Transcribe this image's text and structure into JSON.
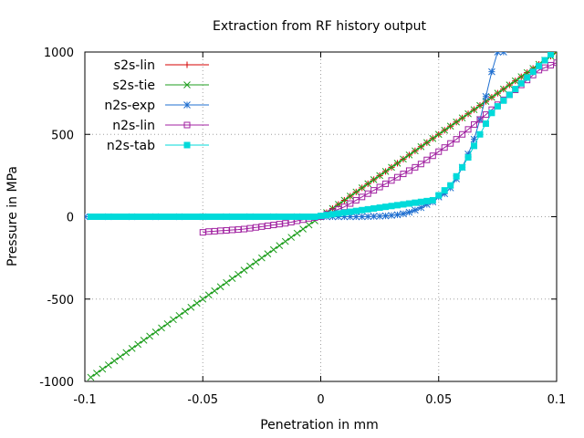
{
  "chart_data": {
    "type": "line",
    "title": "Extraction from RF history output",
    "xlabel": "Penetration in mm",
    "ylabel": "Pressure in MPa",
    "xlim": [
      -0.1,
      0.1
    ],
    "ylim": [
      -1000,
      1000
    ],
    "xticks": [
      -0.1,
      -0.05,
      0,
      0.05,
      0.1
    ],
    "xtick_labels": [
      "-0.1",
      "-0.05",
      "0",
      "0.05",
      "0.1"
    ],
    "yticks": [
      -1000,
      -500,
      0,
      500,
      1000
    ],
    "ytick_labels": [
      "-1000",
      "-500",
      "0",
      "500",
      "1000"
    ],
    "grid": true,
    "legend_position": "top-left",
    "series": [
      {
        "name": "s2s-lin",
        "color": "#d40000",
        "marker": "plus",
        "x": [
          0,
          0.0025,
          0.005,
          0.0075,
          0.01,
          0.0125,
          0.015,
          0.0175,
          0.02,
          0.0225,
          0.025,
          0.0275,
          0.03,
          0.0325,
          0.035,
          0.0375,
          0.04,
          0.0425,
          0.045,
          0.0475,
          0.05,
          0.0525,
          0.055,
          0.0575,
          0.06,
          0.0625,
          0.065,
          0.0675,
          0.07,
          0.0725,
          0.075,
          0.0775,
          0.08,
          0.0825,
          0.085,
          0.0875,
          0.09,
          0.0925,
          0.095,
          0.0975,
          0.1
        ],
        "y": [
          0,
          25,
          50,
          75,
          100,
          125,
          150,
          175,
          200,
          225,
          250,
          275,
          300,
          325,
          350,
          375,
          400,
          425,
          450,
          475,
          500,
          525,
          550,
          575,
          600,
          625,
          650,
          675,
          700,
          725,
          750,
          775,
          800,
          825,
          850,
          875,
          900,
          925,
          950,
          975,
          1000
        ]
      },
      {
        "name": "s2s-tie",
        "color": "#1e9e1e",
        "marker": "cross",
        "x": [
          -0.0975,
          -0.095,
          -0.0925,
          -0.09,
          -0.0875,
          -0.085,
          -0.0825,
          -0.08,
          -0.0775,
          -0.075,
          -0.0725,
          -0.07,
          -0.0675,
          -0.065,
          -0.0625,
          -0.06,
          -0.0575,
          -0.055,
          -0.0525,
          -0.05,
          -0.0475,
          -0.045,
          -0.0425,
          -0.04,
          -0.0375,
          -0.035,
          -0.0325,
          -0.03,
          -0.0275,
          -0.025,
          -0.0225,
          -0.02,
          -0.0175,
          -0.015,
          -0.0125,
          -0.01,
          -0.0075,
          -0.005,
          -0.0025,
          0,
          0.0025,
          0.005,
          0.0075,
          0.01,
          0.0125,
          0.015,
          0.0175,
          0.02,
          0.0225,
          0.025,
          0.0275,
          0.03,
          0.0325,
          0.035,
          0.0375,
          0.04,
          0.0425,
          0.045,
          0.0475,
          0.05,
          0.0525,
          0.055,
          0.0575,
          0.06,
          0.0625,
          0.065,
          0.0675,
          0.07,
          0.0725,
          0.075,
          0.0775,
          0.08,
          0.0825,
          0.085,
          0.0875,
          0.09,
          0.0925,
          0.095,
          0.0975,
          0.1
        ],
        "y": [
          -975,
          -950,
          -925,
          -900,
          -875,
          -850,
          -825,
          -800,
          -775,
          -750,
          -725,
          -700,
          -675,
          -650,
          -625,
          -600,
          -575,
          -550,
          -525,
          -500,
          -475,
          -450,
          -425,
          -400,
          -375,
          -350,
          -325,
          -300,
          -275,
          -250,
          -225,
          -200,
          -175,
          -150,
          -125,
          -100,
          -75,
          -50,
          -25,
          0,
          25,
          50,
          75,
          100,
          125,
          150,
          175,
          200,
          225,
          250,
          275,
          300,
          325,
          350,
          375,
          400,
          425,
          450,
          475,
          500,
          525,
          550,
          575,
          600,
          625,
          650,
          675,
          700,
          725,
          750,
          775,
          800,
          825,
          850,
          875,
          900,
          925,
          950,
          975,
          1000
        ]
      },
      {
        "name": "n2s-exp",
        "color": "#1f6fd0",
        "marker": "star",
        "x": [
          -0.1,
          -0.09,
          -0.08,
          -0.07,
          -0.06,
          -0.05,
          -0.04,
          -0.03,
          -0.02,
          -0.01,
          0,
          0.0025,
          0.005,
          0.0075,
          0.01,
          0.0125,
          0.015,
          0.0175,
          0.02,
          0.0225,
          0.025,
          0.0275,
          0.03,
          0.0325,
          0.035,
          0.0375,
          0.04,
          0.0425,
          0.045,
          0.0475,
          0.05,
          0.0525,
          0.055,
          0.0575,
          0.06,
          0.0625,
          0.065,
          0.0675,
          0.07,
          0.0725,
          0.075,
          0.0775
        ],
        "y": [
          0,
          0,
          0,
          0,
          0,
          0,
          0,
          0,
          0,
          0,
          0,
          0,
          0,
          0,
          0,
          0,
          0,
          0,
          1,
          2,
          3,
          5,
          8,
          12,
          18,
          27,
          40,
          55,
          75,
          90,
          120,
          140,
          175,
          230,
          300,
          380,
          470,
          590,
          730,
          880,
          1000,
          1000
        ]
      },
      {
        "name": "n2s-lin",
        "color": "#a020a0",
        "marker": "square-open",
        "x": [
          -0.05,
          -0.0475,
          -0.045,
          -0.0425,
          -0.04,
          -0.0375,
          -0.035,
          -0.0325,
          -0.03,
          -0.0275,
          -0.025,
          -0.0225,
          -0.02,
          -0.0175,
          -0.015,
          -0.0125,
          -0.01,
          -0.0075,
          -0.005,
          -0.0025,
          0,
          0.0025,
          0.005,
          0.0075,
          0.01,
          0.0125,
          0.015,
          0.0175,
          0.02,
          0.0225,
          0.025,
          0.0275,
          0.03,
          0.0325,
          0.035,
          0.0375,
          0.04,
          0.0425,
          0.045,
          0.0475,
          0.05,
          0.0525,
          0.055,
          0.0575,
          0.06,
          0.0625,
          0.065,
          0.0675,
          0.07,
          0.0725,
          0.075,
          0.0775,
          0.08,
          0.0825,
          0.085,
          0.0875,
          0.09,
          0.0925,
          0.095,
          0.0975,
          0.1
        ],
        "y": [
          -95,
          -90,
          -88,
          -85,
          -83,
          -80,
          -78,
          -75,
          -70,
          -65,
          -60,
          -55,
          -50,
          -45,
          -40,
          -33,
          -25,
          -18,
          -10,
          -5,
          0,
          15,
          30,
          45,
          60,
          80,
          100,
          120,
          140,
          160,
          180,
          200,
          220,
          240,
          260,
          280,
          300,
          320,
          345,
          370,
          395,
          420,
          445,
          470,
          500,
          530,
          560,
          590,
          620,
          650,
          680,
          710,
          740,
          770,
          800,
          830,
          860,
          890,
          905,
          920,
          935
        ]
      },
      {
        "name": "n2s-tab",
        "color": "#00dada",
        "marker": "square-filled",
        "x": [
          -0.0975,
          -0.095,
          -0.0925,
          -0.09,
          -0.0875,
          -0.085,
          -0.0825,
          -0.08,
          -0.0775,
          -0.075,
          -0.0725,
          -0.07,
          -0.0675,
          -0.065,
          -0.0625,
          -0.06,
          -0.0575,
          -0.055,
          -0.0525,
          -0.05,
          -0.0475,
          -0.045,
          -0.0425,
          -0.04,
          -0.0375,
          -0.035,
          -0.0325,
          -0.03,
          -0.0275,
          -0.025,
          -0.0225,
          -0.02,
          -0.0175,
          -0.015,
          -0.0125,
          -0.01,
          -0.0075,
          -0.005,
          -0.0025,
          0,
          0.0025,
          0.005,
          0.0075,
          0.01,
          0.0125,
          0.015,
          0.0175,
          0.02,
          0.0225,
          0.025,
          0.0275,
          0.03,
          0.0325,
          0.035,
          0.0375,
          0.04,
          0.0425,
          0.045,
          0.0475,
          0.05,
          0.0525,
          0.055,
          0.0575,
          0.06,
          0.0625,
          0.065,
          0.0675,
          0.07,
          0.0725,
          0.075,
          0.0775,
          0.08,
          0.0825,
          0.085,
          0.0875,
          0.09,
          0.0925,
          0.095,
          0.0975
        ],
        "y": [
          0,
          0,
          0,
          0,
          0,
          0,
          0,
          0,
          0,
          0,
          0,
          0,
          0,
          0,
          0,
          0,
          0,
          0,
          0,
          0,
          0,
          0,
          0,
          0,
          0,
          0,
          0,
          0,
          0,
          0,
          0,
          0,
          0,
          0,
          0,
          0,
          0,
          0,
          0,
          5,
          10,
          15,
          20,
          25,
          30,
          35,
          40,
          45,
          50,
          55,
          60,
          65,
          70,
          75,
          80,
          85,
          90,
          95,
          100,
          130,
          160,
          190,
          245,
          300,
          360,
          430,
          500,
          565,
          630,
          670,
          705,
          740,
          775,
          810,
          845,
          880,
          915,
          950,
          985
        ]
      }
    ]
  }
}
